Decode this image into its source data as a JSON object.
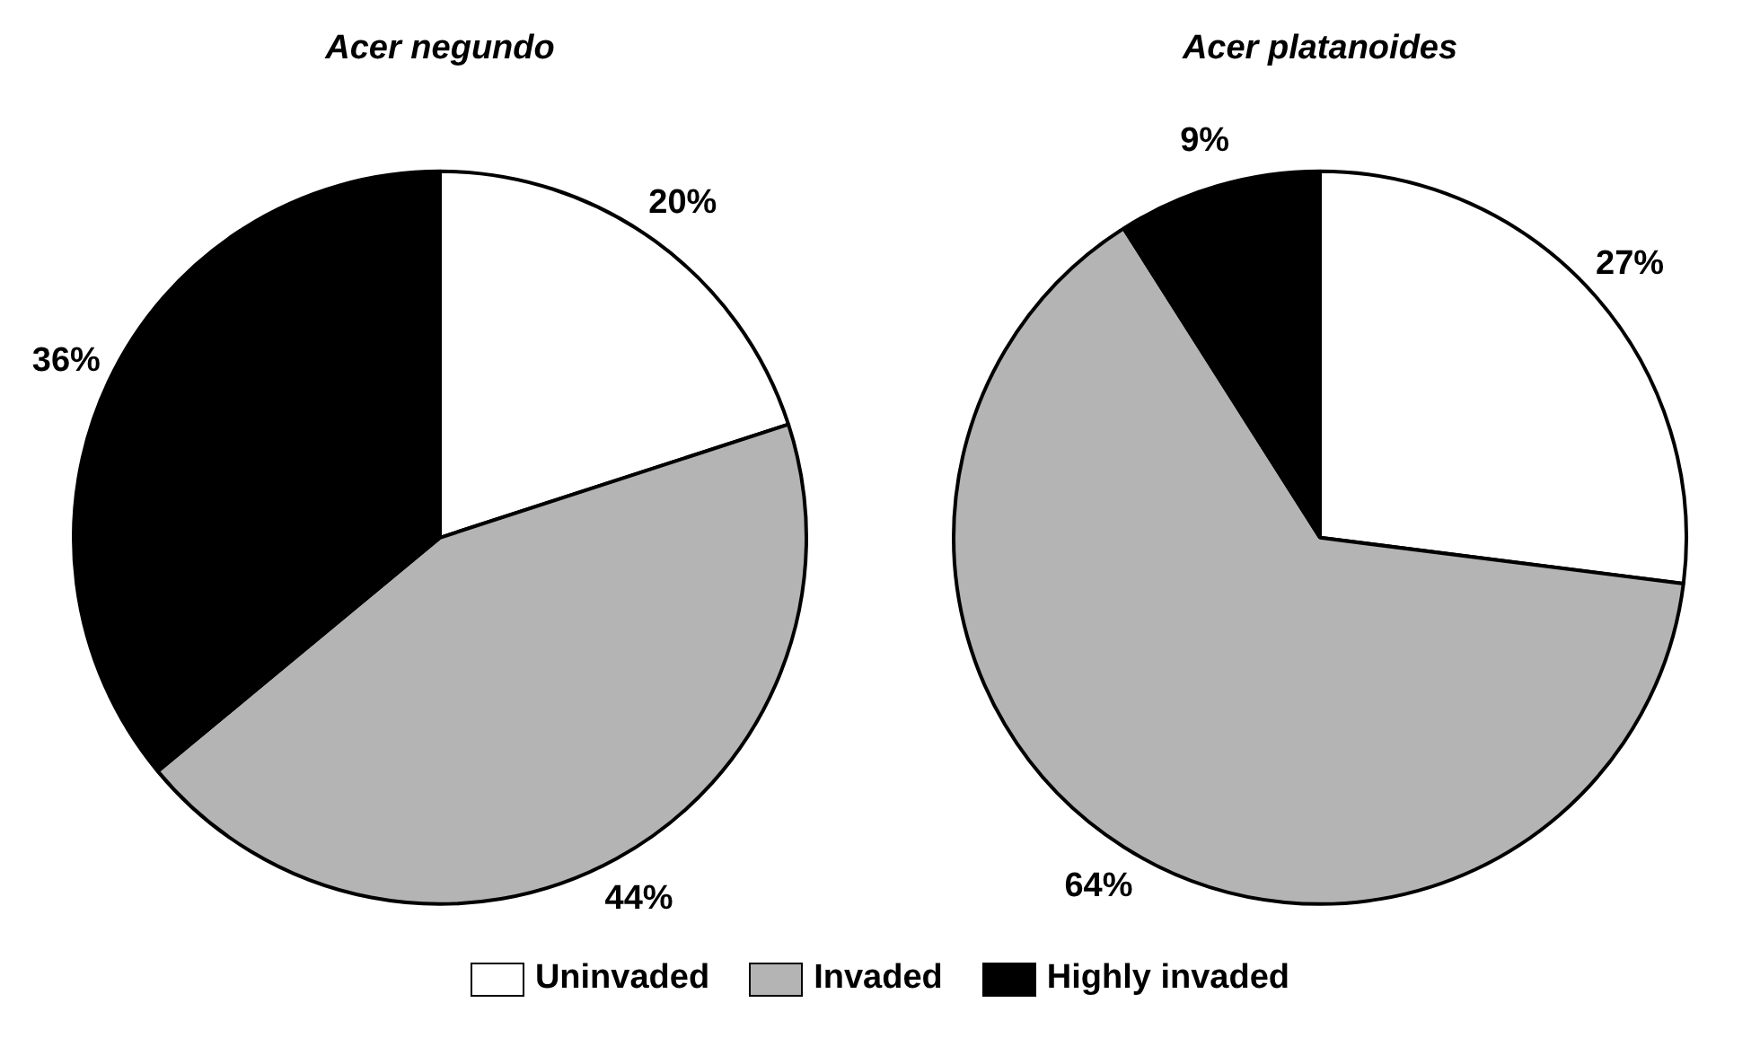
{
  "chart_data": [
    {
      "type": "pie",
      "title": "Acer negundo",
      "categories": [
        "Uninvaded",
        "Invaded",
        "Highly invaded"
      ],
      "values": [
        20,
        44,
        36
      ],
      "colors": [
        "#ffffff",
        "#b4b4b4",
        "#000000"
      ],
      "value_labels": [
        "20%",
        "44%",
        "36%"
      ],
      "legend": "bottom"
    },
    {
      "type": "pie",
      "title": "Acer platanoides",
      "values": [
        27,
        64,
        9
      ],
      "colors": [
        "#ffffff",
        "#b4b4b4",
        "#000000"
      ],
      "value_labels": [
        "27%",
        "64%",
        "9%"
      ]
    }
  ]
}
